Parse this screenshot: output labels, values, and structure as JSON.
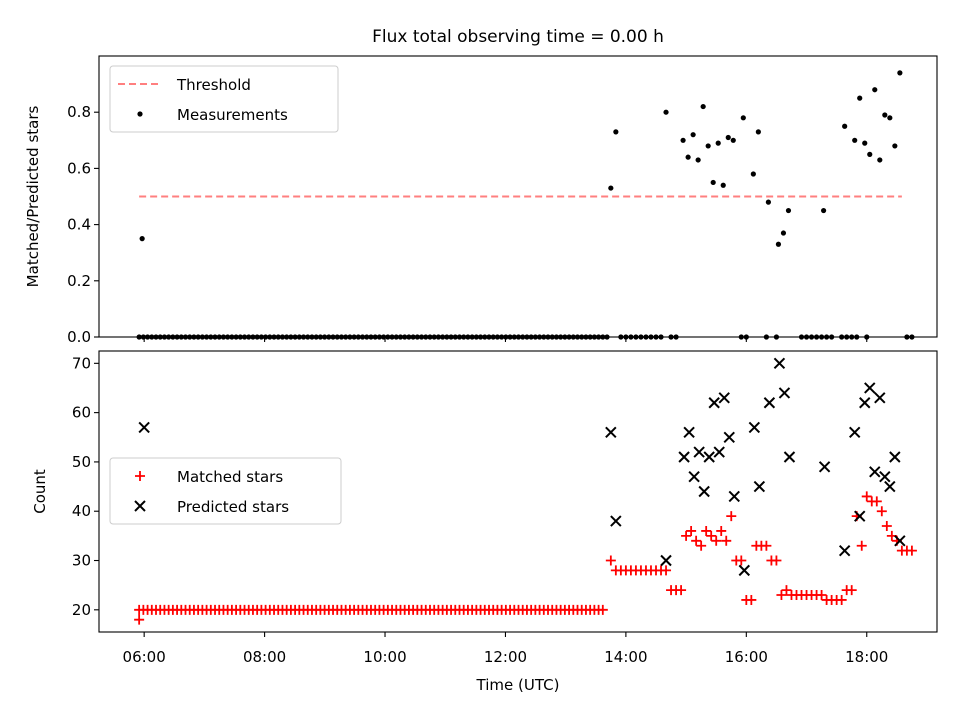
{
  "title": "Flux total observing time = 0.00 h",
  "colors": {
    "threshold": "#ff7f7f",
    "measurements": "#000000",
    "matched": "#ff0000",
    "predicted": "#000000"
  },
  "chart_data": [
    {
      "type": "scatter",
      "ylabel": "Matched/Predicted stars",
      "ylim": [
        0,
        1.0
      ],
      "yticks": [
        "0.0",
        "0.2",
        "0.4",
        "0.6",
        "0.8"
      ],
      "grid": false,
      "legend": {
        "placement": "top-left",
        "entries": [
          "Threshold",
          "Measurements"
        ]
      },
      "series": [
        {
          "name": "Threshold",
          "kind": "dashed-line",
          "x": [
            "05:55",
            "18:35"
          ],
          "y": [
            0.5,
            0.5
          ]
        },
        {
          "name": "Measurements",
          "kind": "points",
          "points": [
            [
              "05:58",
              0.35
            ],
            [
              "13:45",
              0.53
            ],
            [
              "13:50",
              0.73
            ],
            [
              "14:40",
              0.8
            ],
            [
              "14:57",
              0.7
            ],
            [
              "15:02",
              0.64
            ],
            [
              "15:07",
              0.72
            ],
            [
              "15:12",
              0.63
            ],
            [
              "15:17",
              0.82
            ],
            [
              "15:22",
              0.68
            ],
            [
              "15:27",
              0.55
            ],
            [
              "15:32",
              0.69
            ],
            [
              "15:37",
              0.54
            ],
            [
              "15:42",
              0.71
            ],
            [
              "15:47",
              0.7
            ],
            [
              "15:57",
              0.78
            ],
            [
              "16:07",
              0.58
            ],
            [
              "16:12",
              0.73
            ],
            [
              "16:22",
              0.48
            ],
            [
              "16:32",
              0.33
            ],
            [
              "16:37",
              0.37
            ],
            [
              "16:42",
              0.45
            ],
            [
              "17:17",
              0.45
            ],
            [
              "17:38",
              0.75
            ],
            [
              "17:48",
              0.7
            ],
            [
              "17:53",
              0.85
            ],
            [
              "17:58",
              0.69
            ],
            [
              "18:03",
              0.65
            ],
            [
              "18:08",
              0.88
            ],
            [
              "18:13",
              0.63
            ],
            [
              "18:18",
              0.79
            ],
            [
              "18:23",
              0.78
            ],
            [
              "18:28",
              0.68
            ],
            [
              "18:33",
              0.94
            ]
          ]
        },
        {
          "name": "Measurements",
          "kind": "zero-run",
          "from": "05:55",
          "to": "13:45",
          "step_minutes": 4.2,
          "y": 0
        },
        {
          "name": "Measurements",
          "kind": "zero-points",
          "x": [
            "13:55",
            "14:00",
            "14:05",
            "14:10",
            "14:15",
            "14:20",
            "14:25",
            "14:30",
            "14:35",
            "14:45",
            "14:50",
            "15:55",
            "16:00",
            "16:20",
            "16:30",
            "16:55",
            "17:00",
            "17:05",
            "17:10",
            "17:15",
            "17:20",
            "17:25",
            "17:35",
            "17:40",
            "17:45",
            "17:50",
            "18:00",
            "18:40",
            "18:45"
          ],
          "y": 0
        }
      ]
    },
    {
      "type": "scatter",
      "xlabel": "Time (UTC)",
      "ylabel": "Count",
      "xlim": [
        "05:15",
        "19:10"
      ],
      "ylim": [
        15.5,
        72.5
      ],
      "xticks": [
        "06:00",
        "08:00",
        "10:00",
        "12:00",
        "14:00",
        "16:00",
        "18:00"
      ],
      "yticks": [
        "20",
        "30",
        "40",
        "50",
        "60",
        "70"
      ],
      "grid": false,
      "legend": {
        "placement": "center-left",
        "entries": [
          "Matched stars",
          "Predicted stars"
        ]
      },
      "series": [
        {
          "name": "Matched stars",
          "kind": "plus",
          "runs": [
            {
              "from": "05:55",
              "to": "13:40",
              "step_minutes": 4.2,
              "y": 20
            }
          ],
          "points": [
            [
              "05:55",
              18
            ],
            [
              "13:45",
              30
            ],
            [
              "13:50",
              28
            ],
            [
              "13:55",
              28
            ],
            [
              "14:00",
              28
            ],
            [
              "14:05",
              28
            ],
            [
              "14:10",
              28
            ],
            [
              "14:15",
              28
            ],
            [
              "14:20",
              28
            ],
            [
              "14:25",
              28
            ],
            [
              "14:30",
              28
            ],
            [
              "14:35",
              28
            ],
            [
              "14:40",
              28
            ],
            [
              "14:45",
              24
            ],
            [
              "14:50",
              24
            ],
            [
              "14:55",
              24
            ],
            [
              "15:00",
              35
            ],
            [
              "15:05",
              36
            ],
            [
              "15:10",
              34
            ],
            [
              "15:15",
              33
            ],
            [
              "15:20",
              36
            ],
            [
              "15:25",
              35
            ],
            [
              "15:30",
              34
            ],
            [
              "15:35",
              36
            ],
            [
              "15:40",
              34
            ],
            [
              "15:45",
              39
            ],
            [
              "15:50",
              30
            ],
            [
              "15:55",
              30
            ],
            [
              "16:00",
              22
            ],
            [
              "16:05",
              22
            ],
            [
              "16:10",
              33
            ],
            [
              "16:15",
              33
            ],
            [
              "16:20",
              33
            ],
            [
              "16:25",
              30
            ],
            [
              "16:30",
              30
            ],
            [
              "16:35",
              23
            ],
            [
              "16:40",
              24
            ],
            [
              "16:45",
              23
            ],
            [
              "16:50",
              23
            ],
            [
              "16:55",
              23
            ],
            [
              "17:00",
              23
            ],
            [
              "17:05",
              23
            ],
            [
              "17:10",
              23
            ],
            [
              "17:15",
              23
            ],
            [
              "17:20",
              22
            ],
            [
              "17:25",
              22
            ],
            [
              "17:30",
              22
            ],
            [
              "17:35",
              22
            ],
            [
              "17:40",
              24
            ],
            [
              "17:45",
              24
            ],
            [
              "17:50",
              39
            ],
            [
              "17:55",
              33
            ],
            [
              "18:00",
              43
            ],
            [
              "18:05",
              42
            ],
            [
              "18:10",
              42
            ],
            [
              "18:15",
              40
            ],
            [
              "18:20",
              37
            ],
            [
              "18:25",
              35
            ],
            [
              "18:30",
              34
            ],
            [
              "18:35",
              32
            ],
            [
              "18:40",
              32
            ],
            [
              "18:45",
              32
            ]
          ]
        },
        {
          "name": "Predicted stars",
          "kind": "x",
          "points": [
            [
              "06:00",
              57
            ],
            [
              "13:45",
              56
            ],
            [
              "13:50",
              38
            ],
            [
              "14:40",
              30
            ],
            [
              "14:58",
              51
            ],
            [
              "15:03",
              56
            ],
            [
              "15:08",
              47
            ],
            [
              "15:13",
              52
            ],
            [
              "15:18",
              44
            ],
            [
              "15:23",
              51
            ],
            [
              "15:28",
              62
            ],
            [
              "15:33",
              52
            ],
            [
              "15:38",
              63
            ],
            [
              "15:43",
              55
            ],
            [
              "15:48",
              43
            ],
            [
              "15:58",
              28
            ],
            [
              "16:08",
              57
            ],
            [
              "16:13",
              45
            ],
            [
              "16:23",
              62
            ],
            [
              "16:33",
              70
            ],
            [
              "16:38",
              64
            ],
            [
              "16:43",
              51
            ],
            [
              "17:18",
              49
            ],
            [
              "17:38",
              32
            ],
            [
              "17:48",
              56
            ],
            [
              "17:53",
              39
            ],
            [
              "17:58",
              62
            ],
            [
              "18:03",
              65
            ],
            [
              "18:08",
              48
            ],
            [
              "18:13",
              63
            ],
            [
              "18:18",
              47
            ],
            [
              "18:23",
              45
            ],
            [
              "18:28",
              51
            ],
            [
              "18:33",
              34
            ]
          ]
        }
      ]
    }
  ]
}
